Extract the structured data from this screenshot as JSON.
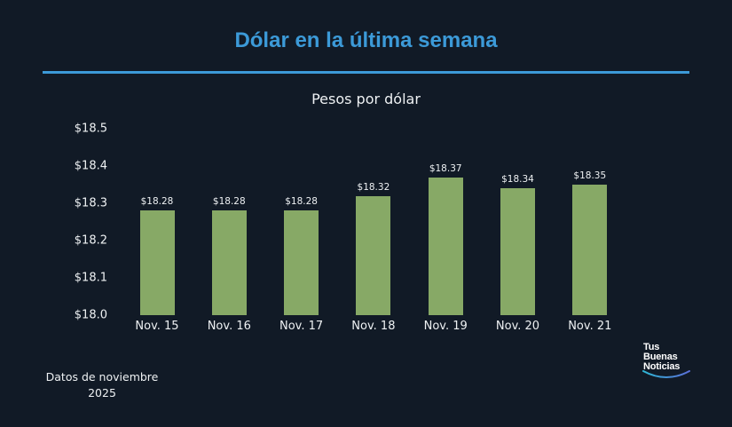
{
  "header": {
    "title": "Dólar en la última semana",
    "subtitle": "Pesos por dólar"
  },
  "footer": {
    "note_line1": "Datos de noviembre",
    "note_line2": "2025"
  },
  "logo": {
    "line1": "Tus",
    "line2": "Buenas",
    "line3": "Noticias"
  },
  "colors": {
    "background": "#111a26",
    "accent": "#3c9ad8",
    "bar": "#87a966",
    "text": "#eef1f3"
  },
  "chart_data": {
    "type": "bar",
    "title": "Dólar en la última semana",
    "subtitle": "Pesos por dólar",
    "xlabel": "",
    "ylabel": "Pesos por dólar",
    "categories": [
      "Nov. 15",
      "Nov. 16",
      "Nov. 17",
      "Nov. 18",
      "Nov. 19",
      "Nov. 20",
      "Nov. 21"
    ],
    "values": [
      18.28,
      18.28,
      18.28,
      18.32,
      18.37,
      18.34,
      18.35
    ],
    "value_labels": [
      "$18.28",
      "$18.28",
      "$18.28",
      "$18.32",
      "$18.37",
      "$18.34",
      "$18.35"
    ],
    "ylim": [
      18.0,
      18.5
    ],
    "yticks": [
      "$18.0",
      "$18.1",
      "$18.2",
      "$18.3",
      "$18.4",
      "$18.5"
    ],
    "grid": false,
    "legend": null,
    "annotations": [
      "Datos de noviembre 2025"
    ]
  }
}
